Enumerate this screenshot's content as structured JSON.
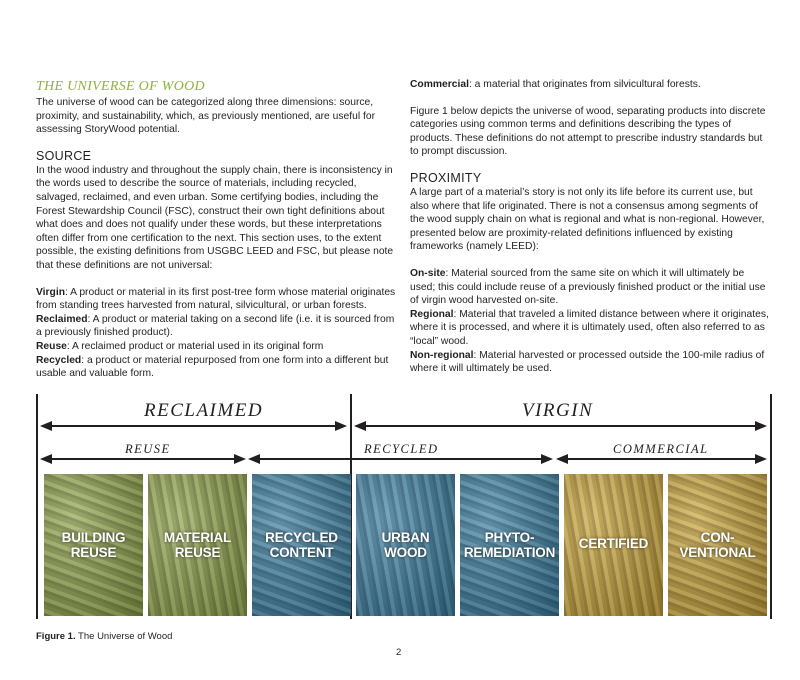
{
  "left": {
    "title": "THE UNIVERSE OF WOOD",
    "intro": "The universe of wood can be categorized along three dimensions: source, proximity, and sustainability, which, as previously mentioned, are useful for assessing StoryWood potential.",
    "source_heading": "SOURCE",
    "source_text": "In the wood industry and throughout the supply chain, there is inconsistency in the words used to describe the source of materials, including recycled, salvaged, reclaimed, and even urban. Some certifying bodies, including the Forest Stewardship Council (FSC), construct their own tight definitions about what does and does not qualify under these words, but these interpretations often differ from one certification to the next. This section uses, to the extent possible, the existing definitions from USGBC LEED and FSC, but please note that these definitions are not universal:",
    "defs": [
      {
        "term": "Virgin",
        "text": ": A product or material in its first post-tree form whose material originates from standing trees harvested from natural, silvicultural, or urban forests."
      },
      {
        "term": "Reclaimed",
        "text": ": A product or material taking on a second life (i.e. it is sourced from a previously finished product)."
      },
      {
        "term": "Reuse",
        "text": ":  A reclaimed product or material used in its original form"
      },
      {
        "term": "Recycled",
        "text": ":  a product or material repurposed from one form into a different but usable and valuable form."
      }
    ]
  },
  "right": {
    "commercial_term": "Commercial",
    "commercial_text": ": a material that originates from silvicultural forests.",
    "figure_intro": "Figure 1 below depicts the universe of wood, separating products into discrete categories using common terms and definitions describing the types of products. These definitions do not attempt to prescribe industry standards but to prompt discussion.",
    "proximity_heading": "PROXIMITY",
    "proximity_text": "A large part of a material’s story is not only its life before its current use, but also where that life originated. There is not a consensus among segments of the wood supply chain on what is regional and what is non-regional. However, presented below are proximity-related definitions influenced by existing frameworks (namely LEED):",
    "defs": [
      {
        "term": "On-site",
        "text": ": Material sourced from the same site on which it will ultimately be used; this could include reuse of a previously finished product or the initial use of virgin wood harvested on-site."
      },
      {
        "term": "Regional",
        "text": ": Material that traveled a limited distance between where it originates, where it is processed, and where it is ultimately used, often also referred to as “local” wood."
      },
      {
        "term": "Non-regional",
        "text": ": Material harvested or processed outside the 100-mile radius of where it will ultimately be used."
      }
    ]
  },
  "figure": {
    "top_categories": [
      "RECLAIMED",
      "VIRGIN"
    ],
    "sub_categories": [
      "REUSE",
      "RECYCLED",
      "COMMERCIAL"
    ],
    "tiles": [
      {
        "label1": "BUILDING",
        "label2": "REUSE",
        "color": "#8fa24a"
      },
      {
        "label1": "MATERIAL",
        "label2": "REUSE",
        "color": "#8fa24a"
      },
      {
        "label1": "RECYCLED",
        "label2": "CONTENT",
        "color": "#3a7ea0"
      },
      {
        "label1": "URBAN",
        "label2": "WOOD",
        "color": "#3a7ea0"
      },
      {
        "label1": "PHYTO-",
        "label2": "REMEDIATION",
        "color": "#3a7ea0"
      },
      {
        "label1": "CERTIFIED",
        "label2": "",
        "color": "#c9a43a"
      },
      {
        "label1": "CON-",
        "label2": "VENTIONAL",
        "color": "#c9a43a"
      }
    ],
    "caption_bold": "Figure 1.",
    "caption_text": " The Universe of Wood"
  },
  "page_number": "2",
  "colors": {
    "accent_green": "#8db33f",
    "reclaimed_green": "#8fa24a",
    "recycled_blue": "#3a7ea0",
    "commercial_gold": "#c9a43a"
  }
}
